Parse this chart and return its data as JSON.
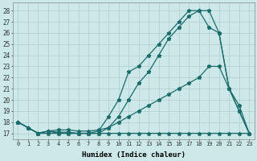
{
  "xlabel": "Humidex (Indice chaleur)",
  "ylabel": "",
  "background_color": "#cce8e8",
  "grid_color": "#b0cccc",
  "line_color": "#1a6b6b",
  "xlim": [
    -0.5,
    23.5
  ],
  "ylim": [
    16.5,
    28.7
  ],
  "xticks": [
    0,
    1,
    2,
    3,
    4,
    5,
    6,
    7,
    8,
    9,
    10,
    11,
    12,
    13,
    14,
    15,
    16,
    17,
    18,
    19,
    20,
    21,
    22,
    23
  ],
  "yticks": [
    17,
    18,
    19,
    20,
    21,
    22,
    23,
    24,
    25,
    26,
    27,
    28
  ],
  "line1_x": [
    0,
    1,
    2,
    3,
    4,
    5,
    6,
    7,
    8,
    9,
    10,
    11,
    12,
    13,
    14,
    15,
    16,
    17,
    18,
    19,
    20,
    21,
    22,
    23
  ],
  "line1_y": [
    18.0,
    17.5,
    17.0,
    17.0,
    17.0,
    17.0,
    17.0,
    17.0,
    17.0,
    17.0,
    17.0,
    17.0,
    17.0,
    17.0,
    17.0,
    17.0,
    17.0,
    17.0,
    17.0,
    17.0,
    17.0,
    17.0,
    17.0,
    17.0
  ],
  "line2_x": [
    0,
    1,
    2,
    3,
    4,
    5,
    6,
    7,
    8,
    9,
    10,
    11,
    12,
    13,
    14,
    15,
    16,
    17,
    18,
    19,
    20,
    21,
    22,
    23
  ],
  "line2_y": [
    18.0,
    17.5,
    17.0,
    17.2,
    17.3,
    17.3,
    17.2,
    17.2,
    17.3,
    17.5,
    18.0,
    18.5,
    19.0,
    19.5,
    20.0,
    20.5,
    21.0,
    21.5,
    22.0,
    23.0,
    23.0,
    21.0,
    19.0,
    17.0
  ],
  "line3_x": [
    0,
    1,
    2,
    3,
    4,
    5,
    6,
    7,
    8,
    9,
    10,
    11,
    12,
    13,
    14,
    15,
    16,
    17,
    18,
    19,
    20,
    21,
    22,
    23
  ],
  "line3_y": [
    18.0,
    17.5,
    17.0,
    17.2,
    17.1,
    17.1,
    17.0,
    17.0,
    17.2,
    18.5,
    20.0,
    22.5,
    23.0,
    24.0,
    25.0,
    26.0,
    27.0,
    28.0,
    28.0,
    26.5,
    26.0,
    21.0,
    19.5,
    17.0
  ],
  "line4_x": [
    0,
    1,
    2,
    3,
    4,
    5,
    6,
    7,
    8,
    9,
    10,
    11,
    12,
    13,
    14,
    15,
    16,
    17,
    18,
    19,
    20,
    21,
    22,
    23
  ],
  "line4_y": [
    18.0,
    17.5,
    17.0,
    17.2,
    17.0,
    17.0,
    17.0,
    17.0,
    17.0,
    17.5,
    18.5,
    20.0,
    21.5,
    22.5,
    24.0,
    25.5,
    26.5,
    27.5,
    28.0,
    28.0,
    26.0,
    21.0,
    19.0,
    17.0
  ]
}
